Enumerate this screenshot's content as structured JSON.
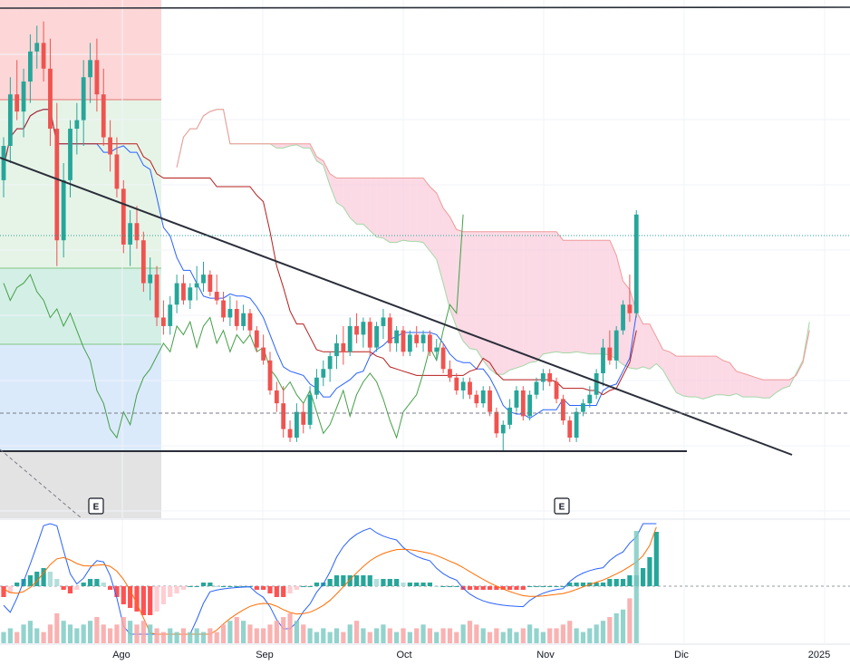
{
  "chart_data": {
    "type": "candlestick",
    "title": "",
    "xlabel": "",
    "ylabel": "",
    "x_ticks": [
      "Ago",
      "Sep",
      "Oct",
      "Nov",
      "Dic",
      "2025"
    ],
    "earnings_markers": [
      "E",
      "E"
    ],
    "grid": true,
    "colors": {
      "up": "#26a69a",
      "down": "#ef5350",
      "conversion_line": "#2962ff",
      "base_line": "#b71c1c",
      "lagging_span": "#43a047",
      "cloud_bearish": "#f8bbd0",
      "cloud_bullish": "#c8e6c9",
      "macd_line": "#2962ff",
      "signal_line": "#ff6d00",
      "trendline": "#2a2e39"
    },
    "candles": [
      {
        "o": 62,
        "h": 72,
        "l": 58,
        "c": 70
      },
      {
        "o": 70,
        "h": 86,
        "l": 66,
        "c": 82
      },
      {
        "o": 82,
        "h": 90,
        "l": 76,
        "c": 78
      },
      {
        "o": 78,
        "h": 88,
        "l": 72,
        "c": 85
      },
      {
        "o": 85,
        "h": 96,
        "l": 80,
        "c": 92
      },
      {
        "o": 92,
        "h": 98,
        "l": 88,
        "c": 94
      },
      {
        "o": 94,
        "h": 99,
        "l": 85,
        "c": 88
      },
      {
        "o": 88,
        "h": 95,
        "l": 70,
        "c": 74
      },
      {
        "o": 74,
        "h": 80,
        "l": 42,
        "c": 48
      },
      {
        "o": 48,
        "h": 66,
        "l": 44,
        "c": 62
      },
      {
        "o": 62,
        "h": 76,
        "l": 58,
        "c": 74
      },
      {
        "o": 74,
        "h": 80,
        "l": 68,
        "c": 76
      },
      {
        "o": 76,
        "h": 90,
        "l": 70,
        "c": 86
      },
      {
        "o": 86,
        "h": 94,
        "l": 80,
        "c": 90
      },
      {
        "o": 90,
        "h": 95,
        "l": 78,
        "c": 82
      },
      {
        "o": 82,
        "h": 88,
        "l": 70,
        "c": 72
      },
      {
        "o": 72,
        "h": 76,
        "l": 64,
        "c": 68
      },
      {
        "o": 68,
        "h": 72,
        "l": 58,
        "c": 60
      },
      {
        "o": 60,
        "h": 62,
        "l": 45,
        "c": 47
      },
      {
        "o": 47,
        "h": 55,
        "l": 42,
        "c": 52
      },
      {
        "o": 52,
        "h": 56,
        "l": 46,
        "c": 48
      },
      {
        "o": 48,
        "h": 50,
        "l": 36,
        "c": 38
      },
      {
        "o": 38,
        "h": 44,
        "l": 34,
        "c": 40
      },
      {
        "o": 40,
        "h": 42,
        "l": 28,
        "c": 30
      },
      {
        "o": 30,
        "h": 34,
        "l": 26,
        "c": 28
      },
      {
        "o": 28,
        "h": 35,
        "l": 26,
        "c": 33
      },
      {
        "o": 33,
        "h": 40,
        "l": 31,
        "c": 38
      },
      {
        "o": 38,
        "h": 40,
        "l": 33,
        "c": 34
      },
      {
        "o": 34,
        "h": 38,
        "l": 32,
        "c": 37
      },
      {
        "o": 37,
        "h": 42,
        "l": 34,
        "c": 38
      },
      {
        "o": 38,
        "h": 43,
        "l": 36,
        "c": 40
      },
      {
        "o": 40,
        "h": 41,
        "l": 35,
        "c": 36
      },
      {
        "o": 36,
        "h": 40,
        "l": 33,
        "c": 34
      },
      {
        "o": 34,
        "h": 36,
        "l": 29,
        "c": 30
      },
      {
        "o": 30,
        "h": 35,
        "l": 28,
        "c": 32
      },
      {
        "o": 32,
        "h": 34,
        "l": 27,
        "c": 28
      },
      {
        "o": 28,
        "h": 33,
        "l": 27,
        "c": 31
      },
      {
        "o": 31,
        "h": 32,
        "l": 26,
        "c": 27
      },
      {
        "o": 27,
        "h": 28,
        "l": 22,
        "c": 23
      },
      {
        "o": 23,
        "h": 26,
        "l": 19,
        "c": 20
      },
      {
        "o": 20,
        "h": 22,
        "l": 12,
        "c": 13
      },
      {
        "o": 13,
        "h": 15,
        "l": 8,
        "c": 10
      },
      {
        "o": 10,
        "h": 14,
        "l": 2,
        "c": 4
      },
      {
        "o": 4,
        "h": 6,
        "l": 1,
        "c": 2
      },
      {
        "o": 2,
        "h": 10,
        "l": 1,
        "c": 8
      },
      {
        "o": 8,
        "h": 10,
        "l": 3,
        "c": 5
      },
      {
        "o": 5,
        "h": 14,
        "l": 4,
        "c": 12
      },
      {
        "o": 12,
        "h": 18,
        "l": 11,
        "c": 16
      },
      {
        "o": 16,
        "h": 20,
        "l": 14,
        "c": 18
      },
      {
        "o": 18,
        "h": 22,
        "l": 15,
        "c": 21
      },
      {
        "o": 21,
        "h": 26,
        "l": 18,
        "c": 24
      },
      {
        "o": 24,
        "h": 28,
        "l": 19,
        "c": 22
      },
      {
        "o": 22,
        "h": 30,
        "l": 21,
        "c": 28
      },
      {
        "o": 28,
        "h": 31,
        "l": 24,
        "c": 26
      },
      {
        "o": 26,
        "h": 30,
        "l": 23,
        "c": 29
      },
      {
        "o": 29,
        "h": 30,
        "l": 21,
        "c": 23
      },
      {
        "o": 23,
        "h": 29,
        "l": 22,
        "c": 28
      },
      {
        "o": 28,
        "h": 32,
        "l": 25,
        "c": 30
      },
      {
        "o": 30,
        "h": 31,
        "l": 22,
        "c": 24
      },
      {
        "o": 24,
        "h": 28,
        "l": 22,
        "c": 27
      },
      {
        "o": 27,
        "h": 28,
        "l": 21,
        "c": 22
      },
      {
        "o": 22,
        "h": 27,
        "l": 21,
        "c": 26
      },
      {
        "o": 26,
        "h": 28,
        "l": 23,
        "c": 24
      },
      {
        "o": 24,
        "h": 27,
        "l": 22,
        "c": 26
      },
      {
        "o": 26,
        "h": 27,
        "l": 21,
        "c": 22
      },
      {
        "o": 22,
        "h": 25,
        "l": 20,
        "c": 23
      },
      {
        "o": 23,
        "h": 24,
        "l": 17,
        "c": 18
      },
      {
        "o": 18,
        "h": 20,
        "l": 15,
        "c": 16
      },
      {
        "o": 16,
        "h": 17,
        "l": 12,
        "c": 13
      },
      {
        "o": 13,
        "h": 16,
        "l": 11,
        "c": 15
      },
      {
        "o": 15,
        "h": 16,
        "l": 11,
        "c": 12
      },
      {
        "o": 12,
        "h": 13,
        "l": 9,
        "c": 10
      },
      {
        "o": 10,
        "h": 14,
        "l": 9,
        "c": 13
      },
      {
        "o": 13,
        "h": 14,
        "l": 7,
        "c": 8
      },
      {
        "o": 8,
        "h": 9,
        "l": 2,
        "c": 3
      },
      {
        "o": 3,
        "h": 6,
        "l": -1,
        "c": 5
      },
      {
        "o": 5,
        "h": 11,
        "l": 4,
        "c": 9
      },
      {
        "o": 9,
        "h": 14,
        "l": 8,
        "c": 13
      },
      {
        "o": 13,
        "h": 14,
        "l": 6,
        "c": 7
      },
      {
        "o": 7,
        "h": 13,
        "l": 6,
        "c": 12
      },
      {
        "o": 12,
        "h": 16,
        "l": 11,
        "c": 15
      },
      {
        "o": 15,
        "h": 18,
        "l": 13,
        "c": 17
      },
      {
        "o": 17,
        "h": 18,
        "l": 14,
        "c": 15
      },
      {
        "o": 15,
        "h": 16,
        "l": 10,
        "c": 11
      },
      {
        "o": 11,
        "h": 12,
        "l": 5,
        "c": 6
      },
      {
        "o": 6,
        "h": 7,
        "l": 1,
        "c": 2
      },
      {
        "o": 2,
        "h": 9,
        "l": 1,
        "c": 8
      },
      {
        "o": 8,
        "h": 11,
        "l": 7,
        "c": 10
      },
      {
        "o": 10,
        "h": 14,
        "l": 9,
        "c": 12
      },
      {
        "o": 12,
        "h": 18,
        "l": 11,
        "c": 17
      },
      {
        "o": 17,
        "h": 25,
        "l": 14,
        "c": 23
      },
      {
        "o": 23,
        "h": 27,
        "l": 19,
        "c": 20
      },
      {
        "o": 20,
        "h": 28,
        "l": 18,
        "c": 27
      },
      {
        "o": 27,
        "h": 34,
        "l": 26,
        "c": 33
      },
      {
        "o": 33,
        "h": 40,
        "l": 29,
        "c": 31
      },
      {
        "o": 31,
        "h": 55,
        "l": 30,
        "c": 54
      }
    ],
    "macd_histogram": [
      -3,
      -2,
      1,
      2,
      3,
      4,
      5,
      4,
      2,
      -1,
      -2,
      -1,
      1,
      2,
      2,
      1,
      -1,
      -3,
      -5,
      -6,
      -7,
      -8,
      -8,
      -7,
      -5,
      -3,
      -2,
      -1,
      0,
      0,
      1,
      1,
      0,
      0,
      0,
      0,
      0,
      0,
      -1,
      -1,
      -2,
      -3,
      -3,
      -2,
      -1,
      0,
      0,
      1,
      1,
      2,
      3,
      3,
      3,
      3,
      3,
      3,
      2,
      2,
      2,
      2,
      1,
      1,
      1,
      1,
      1,
      0,
      0,
      0,
      0,
      -1,
      -1,
      -1,
      -1,
      -1,
      -1,
      -1,
      -1,
      -1,
      -1,
      0,
      0,
      0,
      0,
      0,
      0,
      1,
      1,
      1,
      1,
      1,
      1,
      2,
      2,
      2,
      3,
      3,
      5,
      8,
      15
    ],
    "volume": [
      3,
      4,
      3,
      5,
      6,
      4,
      3,
      5,
      8,
      6,
      5,
      4,
      5,
      6,
      7,
      5,
      4,
      5,
      7,
      6,
      5,
      6,
      5,
      4,
      3,
      4,
      3,
      4,
      3,
      4,
      3,
      4,
      3,
      5,
      6,
      7,
      6,
      5,
      4,
      4,
      5,
      6,
      7,
      8,
      6,
      5,
      4,
      3,
      4,
      3,
      4,
      3,
      5,
      6,
      4,
      3,
      4,
      5,
      4,
      3,
      4,
      3,
      4,
      5,
      4,
      3,
      4,
      4,
      3,
      5,
      6,
      5,
      4,
      3,
      4,
      3,
      4,
      3,
      4,
      5,
      4,
      3,
      4,
      4,
      5,
      6,
      4,
      3,
      4,
      5,
      6,
      7,
      8,
      9,
      12,
      30
    ]
  }
}
